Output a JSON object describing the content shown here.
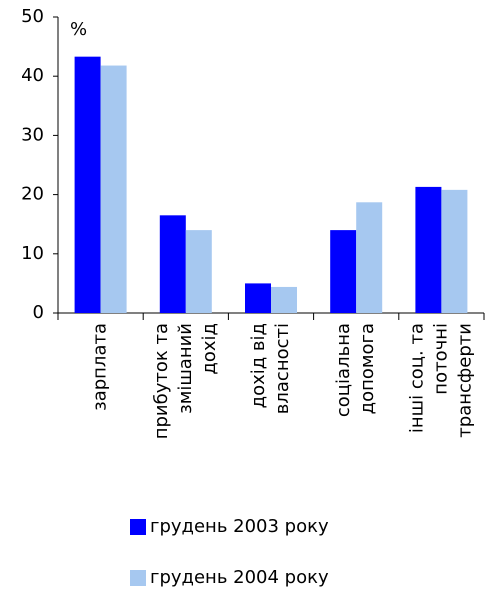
{
  "chart_data": {
    "type": "bar",
    "y_unit": "%",
    "categories": [
      [
        "зарплата"
      ],
      [
        "прибуток та",
        "змішаний",
        "дохід"
      ],
      [
        "дохід від",
        "власності"
      ],
      [
        "соціальна",
        "допомога"
      ],
      [
        "інші соц. та",
        "поточні",
        "трансферти"
      ]
    ],
    "series": [
      {
        "name": "грудень 2003 року",
        "color": "#0000ff",
        "values": [
          43.3,
          16.5,
          5.0,
          14.0,
          21.3
        ]
      },
      {
        "name": "грудень 2004 року",
        "color": "#a6c8f0",
        "values": [
          41.8,
          14.0,
          4.4,
          18.7,
          20.8
        ]
      }
    ],
    "ylim": [
      0,
      50
    ],
    "yticks": [
      0,
      10,
      20,
      30,
      40,
      50
    ]
  }
}
